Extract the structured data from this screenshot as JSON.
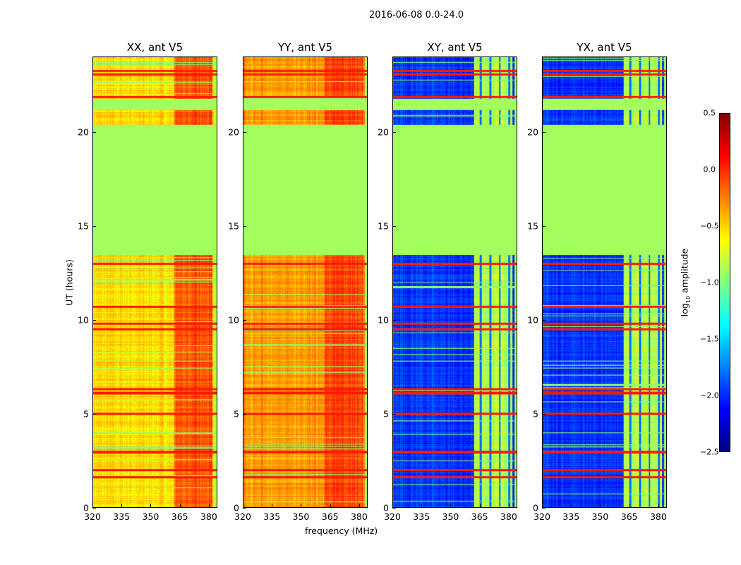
{
  "chart_data": {
    "type": "heatmap",
    "title": "2016-06-08 0.0-24.0",
    "xlabel": "frequency (MHz)",
    "ylabel": "UT (hours)",
    "xlim": [
      320,
      384.4
    ],
    "ylim": [
      0,
      24
    ],
    "xticks": [
      "320",
      "335",
      "350",
      "365",
      "380"
    ],
    "yticks": [
      "0",
      "5",
      "10",
      "15",
      "20"
    ],
    "xtick_values": [
      320,
      335,
      350,
      365,
      380
    ],
    "ytick_values": [
      0,
      5,
      10,
      15,
      20
    ],
    "colorbar": {
      "label_main": "log",
      "label_sub": "10",
      "label_rest": " amplitude",
      "range": [
        -2.5,
        0.5
      ],
      "ticks": [
        "0.5",
        "0.0",
        "−0.5",
        "−1.0",
        "−1.5",
        "−2.0",
        "−2.5"
      ],
      "tick_values": [
        0.5,
        0.0,
        -0.5,
        -1.0,
        -1.5,
        -2.0,
        -2.5
      ],
      "colormap": "jet"
    },
    "flagged_ut_ranges": [
      [
        13.45,
        20.4
      ],
      [
        21.2,
        21.8
      ]
    ],
    "bright_ut_lines": [
      1.6,
      2.0,
      2.95,
      5.0,
      6.1,
      6.3,
      9.5,
      9.8,
      10.7,
      13.0,
      21.9,
      23.1,
      23.3
    ],
    "panels": [
      {
        "title": "XX, ant V5",
        "base_level": -0.55,
        "band_mhz": [
          362,
          382
        ],
        "band_level": -0.15
      },
      {
        "title": "YY, ant V5",
        "base_level": -0.35,
        "band_mhz": [
          362,
          382
        ],
        "band_level": -0.1
      },
      {
        "title": "XY, ant V5",
        "base_level": -2.0,
        "band_mhz": [
          362,
          382
        ],
        "band_level": -0.85
      },
      {
        "title": "YX, ant V5",
        "base_level": -2.0,
        "band_mhz": [
          362,
          382
        ],
        "band_level": -0.85
      }
    ]
  }
}
